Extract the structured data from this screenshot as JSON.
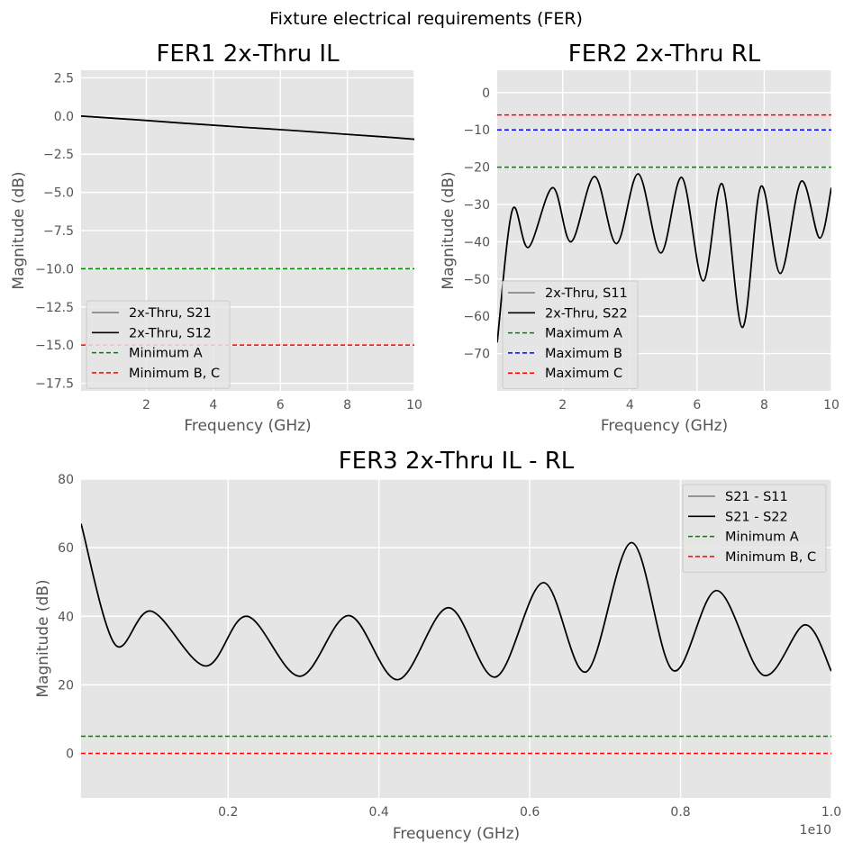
{
  "figure": {
    "suptitle": "Fixture electrical requirements (FER)"
  },
  "colors": {
    "panel_bg": "#e5e5e5",
    "grid": "#ffffff",
    "tick": "#555555"
  },
  "chart_data": [
    {
      "id": "fer1",
      "type": "line",
      "title": "FER1 2x-Thru IL",
      "xlabel": "Frequency (GHz)",
      "ylabel": "Magnitude (dB)",
      "xlim": [
        0.05,
        10
      ],
      "ylim": [
        -18,
        3
      ],
      "xticks": [
        2,
        4,
        6,
        8,
        10
      ],
      "xtick_labels": [
        "2",
        "4",
        "6",
        "8",
        "10"
      ],
      "yticks": [
        2.5,
        0,
        -2.5,
        -5,
        -7.5,
        -10,
        -12.5,
        -15,
        -17.5
      ],
      "ytick_labels": [
        "2.5",
        "0.0",
        "−2.5",
        "−5.0",
        "−7.5",
        "−10.0",
        "−12.5",
        "−15.0",
        "−17.5"
      ],
      "grid": true,
      "legend_loc": "lower-left",
      "series": [
        {
          "name": "2x-Thru, S21",
          "color": "#888888",
          "style": "solid",
          "x": [
            0.05,
            1,
            2,
            3,
            4,
            5,
            6,
            7,
            8,
            9,
            10
          ],
          "y": [
            0.0,
            -0.14,
            -0.29,
            -0.45,
            -0.6,
            -0.75,
            -0.89,
            -1.04,
            -1.2,
            -1.35,
            -1.52
          ]
        },
        {
          "name": "2x-Thru, S12",
          "color": "#000000",
          "style": "solid",
          "x": [
            0.05,
            1,
            2,
            3,
            4,
            5,
            6,
            7,
            8,
            9,
            10
          ],
          "y": [
            0.0,
            -0.14,
            -0.29,
            -0.45,
            -0.6,
            -0.75,
            -0.89,
            -1.04,
            -1.2,
            -1.35,
            -1.52
          ]
        },
        {
          "name": "Minimum A",
          "color": "#008000",
          "style": "dashed",
          "x": [
            0.05,
            10
          ],
          "y": [
            -10,
            -10
          ]
        },
        {
          "name": "Minimum B, C",
          "color": "#ff0000",
          "style": "dashed",
          "x": [
            0.05,
            10
          ],
          "y": [
            -15,
            -15
          ]
        }
      ]
    },
    {
      "id": "fer2",
      "type": "line",
      "title": "FER2 2x-Thru RL",
      "xlabel": "Frequency (GHz)",
      "ylabel": "Magnitude (dB)",
      "xlim": [
        0.05,
        10
      ],
      "ylim": [
        -80,
        6
      ],
      "xticks": [
        2,
        4,
        6,
        8,
        10
      ],
      "xtick_labels": [
        "2",
        "4",
        "6",
        "8",
        "10"
      ],
      "yticks": [
        0,
        -10,
        -20,
        -30,
        -40,
        -50,
        -60,
        -70
      ],
      "ytick_labels": [
        "0",
        "−10",
        "−20",
        "−30",
        "−40",
        "−50",
        "−60",
        "−70"
      ],
      "grid": true,
      "legend_loc": "lower-left",
      "series": [
        {
          "name": "2x-Thru, S11",
          "color": "#888888",
          "style": "solid",
          "x": [
            0.05,
            0.5,
            0.98,
            1.7,
            2.25,
            2.95,
            3.6,
            4.25,
            4.92,
            5.55,
            6.18,
            6.75,
            7.35,
            7.9,
            8.48,
            9.1,
            9.65,
            10
          ],
          "y": [
            -67,
            -31.5,
            -41.5,
            -25.5,
            -40,
            -22.5,
            -40.5,
            -21.8,
            -43,
            -22.8,
            -50.5,
            -24.5,
            -63,
            -25.2,
            -48.5,
            -23.8,
            -39,
            -25.5
          ]
        },
        {
          "name": "2x-Thru, S22",
          "color": "#000000",
          "style": "solid",
          "x": [
            0.05,
            0.5,
            0.98,
            1.7,
            2.25,
            2.95,
            3.6,
            4.25,
            4.92,
            5.55,
            6.18,
            6.75,
            7.35,
            7.9,
            8.48,
            9.1,
            9.65,
            10
          ],
          "y": [
            -67,
            -31.5,
            -41.5,
            -25.5,
            -40,
            -22.5,
            -40.5,
            -21.8,
            -43,
            -22.8,
            -50.5,
            -24.5,
            -63,
            -25.2,
            -48.5,
            -23.8,
            -39,
            -25.5
          ]
        },
        {
          "name": "Maximum A",
          "color": "#008000",
          "style": "dashed",
          "x": [
            0.05,
            10
          ],
          "y": [
            -20,
            -20
          ]
        },
        {
          "name": "Maximum B",
          "color": "#0000ff",
          "style": "dashed",
          "x": [
            0.05,
            10
          ],
          "y": [
            -10,
            -10
          ]
        },
        {
          "name": "Maximum C",
          "color": "#ff0000",
          "style": "dashed",
          "x": [
            0.05,
            10
          ],
          "y": [
            -6,
            -6
          ]
        }
      ]
    },
    {
      "id": "fer3",
      "type": "line",
      "title": "FER3 2x-Thru IL - RL",
      "xlabel": "Frequency (GHz)",
      "ylabel": "Magnitude (dB)",
      "x_offset_label": "1e10",
      "xlim": [
        0.005,
        1.0
      ],
      "ylim": [
        -13,
        80
      ],
      "xticks": [
        0.2,
        0.4,
        0.6,
        0.8,
        1.0
      ],
      "xtick_labels": [
        "0.2",
        "0.4",
        "0.6",
        "0.8",
        "1.0"
      ],
      "yticks": [
        80,
        60,
        40,
        20,
        0
      ],
      "ytick_labels": [
        "80",
        "60",
        "40",
        "20",
        "0"
      ],
      "grid": true,
      "legend_loc": "upper-right",
      "series": [
        {
          "name": "S21 - S11",
          "color": "#888888",
          "style": "solid",
          "x": [
            0.005,
            0.05,
            0.098,
            0.17,
            0.225,
            0.295,
            0.36,
            0.425,
            0.492,
            0.555,
            0.618,
            0.675,
            0.735,
            0.79,
            0.848,
            0.91,
            0.965,
            1.0
          ],
          "y": [
            67,
            31.8,
            41.5,
            25.5,
            40,
            22.5,
            40.2,
            21.5,
            42.5,
            22.3,
            49.8,
            23.8,
            61.5,
            24.2,
            47.5,
            22.8,
            37.5,
            24
          ]
        },
        {
          "name": "S21 - S22",
          "color": "#000000",
          "style": "solid",
          "x": [
            0.005,
            0.05,
            0.098,
            0.17,
            0.225,
            0.295,
            0.36,
            0.425,
            0.492,
            0.555,
            0.618,
            0.675,
            0.735,
            0.79,
            0.848,
            0.91,
            0.965,
            1.0
          ],
          "y": [
            67,
            31.8,
            41.5,
            25.5,
            40,
            22.5,
            40.2,
            21.5,
            42.5,
            22.3,
            49.8,
            23.8,
            61.5,
            24.2,
            47.5,
            22.8,
            37.5,
            24
          ]
        },
        {
          "name": "Minimum A",
          "color": "#008000",
          "style": "dashed",
          "x": [
            0.005,
            1.0
          ],
          "y": [
            5,
            5
          ]
        },
        {
          "name": "Minimum B, C",
          "color": "#ff0000",
          "style": "dashed",
          "x": [
            0.005,
            1.0
          ],
          "y": [
            0,
            0
          ]
        }
      ]
    }
  ]
}
